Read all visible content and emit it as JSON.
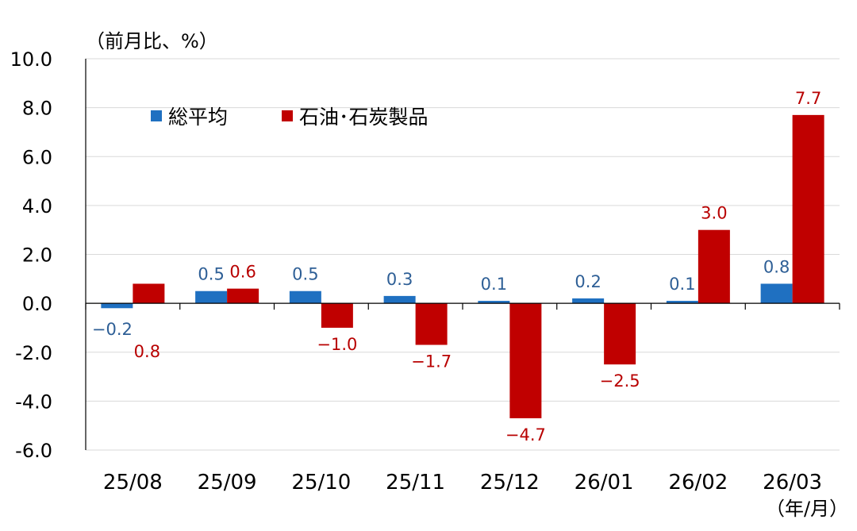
{
  "chart_data": {
    "type": "bar",
    "y_unit_label": "（前月比、%）",
    "x_unit_label": "（年/月）",
    "categories": [
      "25/08",
      "25/09",
      "25/10",
      "25/11",
      "25/12",
      "26/01",
      "26/02",
      "26/03"
    ],
    "series": [
      {
        "name": "総平均",
        "color": "#1f70c1",
        "values": [
          -0.2,
          0.5,
          0.5,
          0.3,
          0.1,
          0.2,
          0.1,
          0.8
        ],
        "labels": [
          "−0.2",
          "0.5",
          "0.5",
          "0.3",
          "0.1",
          "0.2",
          "0.1",
          "0.8"
        ]
      },
      {
        "name": "石油･石炭製品",
        "color": "#c00000",
        "values": [
          0.8,
          0.6,
          -1.0,
          -1.7,
          -4.7,
          -2.5,
          3.0,
          7.7
        ],
        "labels": [
          "0.8",
          "0.6",
          "−1.0",
          "−1.7",
          "−4.7",
          "−2.5",
          "3.0",
          "7.7"
        ]
      }
    ],
    "ylim": [
      -6.0,
      10.0
    ],
    "yticks": [
      10.0,
      8.0,
      6.0,
      4.0,
      2.0,
      0.0,
      -2.0,
      -4.0,
      -6.0
    ],
    "ytick_labels": [
      "10.0",
      "8.0",
      "6.0",
      "4.0",
      "2.0",
      "0.0",
      "-2.0",
      "-4.0",
      "-6.0"
    ],
    "grid": true,
    "legend": "top-left"
  }
}
